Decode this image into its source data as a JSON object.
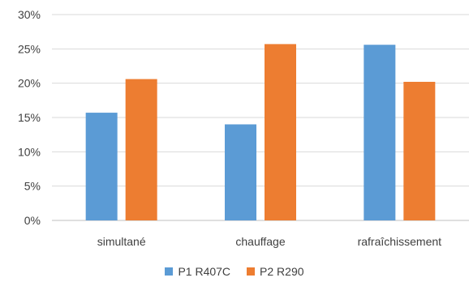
{
  "chart_data": {
    "type": "bar",
    "categories": [
      "simultané",
      "chauffage",
      "rafraîchissement"
    ],
    "series": [
      {
        "name": "P1 R407C",
        "color": "#5b9bd5",
        "values": [
          15.7,
          14.0,
          25.6
        ]
      },
      {
        "name": "P2 R290",
        "color": "#ed7d31",
        "values": [
          20.6,
          25.7,
          20.2
        ]
      }
    ],
    "ylim": [
      0,
      30
    ],
    "yticks": [
      "0%",
      "5%",
      "10%",
      "15%",
      "20%",
      "25%",
      "30%"
    ],
    "grid": true,
    "legend_position": "bottom"
  }
}
